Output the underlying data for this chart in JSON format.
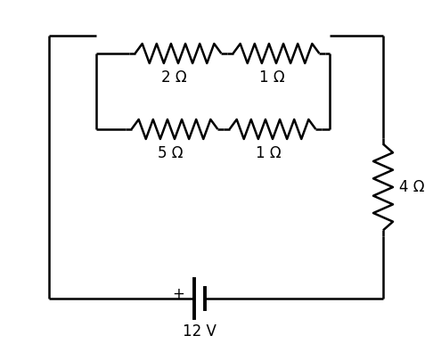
{
  "background_color": "#ffffff",
  "line_color": "#000000",
  "line_width": 1.8,
  "resistor_2ohm_label": "2 Ω",
  "resistor_1ohm_top_label": "1 Ω",
  "resistor_5ohm_label": "5 Ω",
  "resistor_1ohm_bot_label": "1 Ω",
  "resistor_4ohm_label": "4 Ω",
  "battery_label": "12 V",
  "battery_plus": "+",
  "font_size": 12
}
